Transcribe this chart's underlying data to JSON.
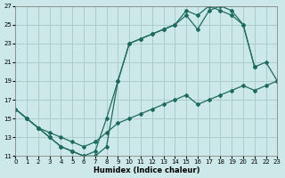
{
  "background_color": "#cce8e8",
  "grid_color": "#aacccc",
  "line_color": "#1e6b5e",
  "xlabel": "Humidex (Indice chaleur)",
  "xlim": [
    0,
    23
  ],
  "ylim": [
    11,
    27
  ],
  "yticks": [
    11,
    13,
    15,
    17,
    19,
    21,
    23,
    25,
    27
  ],
  "xticks": [
    0,
    1,
    2,
    3,
    4,
    5,
    6,
    7,
    8,
    9,
    10,
    11,
    12,
    13,
    14,
    15,
    16,
    17,
    18,
    19,
    20,
    21,
    22,
    23
  ],
  "line1_x": [
    0,
    1,
    2,
    3,
    4,
    5,
    6,
    7,
    8,
    9,
    10,
    11,
    12,
    13,
    14,
    15,
    16,
    17,
    18,
    19,
    20,
    21,
    22,
    23
  ],
  "line1_y": [
    16,
    15,
    14,
    13,
    12,
    11.5,
    11,
    11,
    12,
    19,
    23,
    23.5,
    24,
    24.5,
    25,
    26.5,
    26,
    27,
    26.5,
    26,
    25,
    20.5,
    null,
    null
  ],
  "line2_x": [
    0,
    1,
    2,
    3,
    4,
    5,
    6,
    7,
    8,
    9,
    10,
    11,
    12,
    13,
    14,
    15,
    16,
    17,
    18,
    19,
    20,
    21,
    22,
    23
  ],
  "line2_y": [
    16,
    15,
    14,
    13,
    12,
    11.5,
    11,
    11.5,
    15,
    19,
    23,
    23.5,
    24,
    24.5,
    25,
    26,
    24.5,
    26.5,
    27,
    26.5,
    25,
    20.5,
    21,
    19
  ],
  "line3_x": [
    0,
    1,
    2,
    3,
    4,
    5,
    6,
    7,
    8,
    9,
    10,
    11,
    12,
    13,
    14,
    15,
    16,
    17,
    18,
    19,
    20,
    21,
    22,
    23
  ],
  "line3_y": [
    16,
    15,
    14,
    13.5,
    13,
    12.5,
    12,
    12.5,
    13.5,
    14.5,
    15,
    15.5,
    16,
    16.5,
    17,
    17.5,
    16.5,
    17,
    17.5,
    18,
    18.5,
    18,
    18.5,
    19
  ]
}
